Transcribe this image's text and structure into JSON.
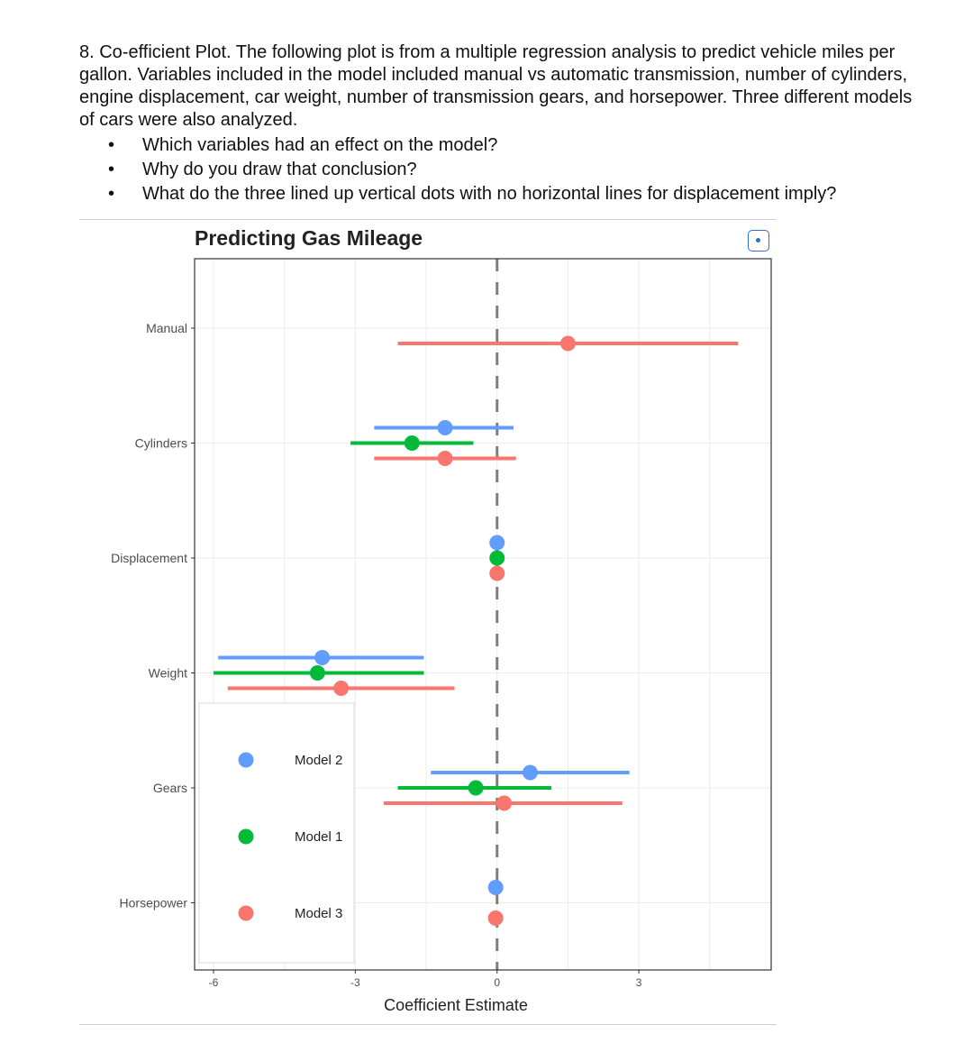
{
  "question": {
    "text": "8. Co-efficient Plot. The following plot is from a multiple regression analysis to predict vehicle miles per gallon. Variables included in the model included manual vs automatic transmission, number of cylinders, engine displacement, car weight, number of transmission gears, and horsepower. Three different models of cars were also analyzed.",
    "bullets": [
      "Which variables had an effect on the model?",
      "Why do you draw that conclusion?",
      "What do the three lined up vertical dots with no horizontal lines for displacement imply?"
    ]
  },
  "icons": {
    "expand": "expand-icon"
  },
  "chart_data": {
    "type": "scatter",
    "title": "Predicting Gas Mileage",
    "xlabel": "Coefficient Estimate",
    "ylabel": "",
    "xlim": [
      -6.4,
      5.8
    ],
    "xticks": [
      -6,
      -3,
      0,
      3
    ],
    "categories": [
      "Manual",
      "Cylinders",
      "Displacement",
      "Weight",
      "Gears",
      "Horsepower"
    ],
    "reference_line": 0,
    "grid": true,
    "legend_position": "bottom-left-inside",
    "series": [
      {
        "name": "Model 2",
        "color": "#619cff",
        "points": [
          {
            "category": "Cylinders",
            "estimate": -1.1,
            "low": -2.6,
            "high": 0.35
          },
          {
            "category": "Displacement",
            "estimate": 0.0,
            "low": 0.0,
            "high": 0.0
          },
          {
            "category": "Weight",
            "estimate": -3.7,
            "low": -5.9,
            "high": -1.55
          },
          {
            "category": "Gears",
            "estimate": 0.7,
            "low": -1.4,
            "high": 2.8
          },
          {
            "category": "Horsepower",
            "estimate": -0.03,
            "low": -0.03,
            "high": -0.03
          }
        ]
      },
      {
        "name": "Model 1",
        "color": "#00ba38",
        "points": [
          {
            "category": "Cylinders",
            "estimate": -1.8,
            "low": -3.1,
            "high": -0.5
          },
          {
            "category": "Displacement",
            "estimate": 0.0,
            "low": 0.0,
            "high": 0.0
          },
          {
            "category": "Weight",
            "estimate": -3.8,
            "low": -6.0,
            "high": -1.55
          },
          {
            "category": "Gears",
            "estimate": -0.45,
            "low": -2.1,
            "high": 1.15
          }
        ]
      },
      {
        "name": "Model 3",
        "color": "#f8766d",
        "points": [
          {
            "category": "Manual",
            "estimate": 1.5,
            "low": -2.1,
            "high": 5.1
          },
          {
            "category": "Cylinders",
            "estimate": -1.1,
            "low": -2.6,
            "high": 0.4
          },
          {
            "category": "Displacement",
            "estimate": 0.0,
            "low": 0.0,
            "high": 0.0
          },
          {
            "category": "Weight",
            "estimate": -3.3,
            "low": -5.7,
            "high": -0.9
          },
          {
            "category": "Gears",
            "estimate": 0.15,
            "low": -2.4,
            "high": 2.65
          },
          {
            "category": "Horsepower",
            "estimate": -0.03,
            "low": -0.03,
            "high": -0.03
          }
        ]
      }
    ]
  }
}
